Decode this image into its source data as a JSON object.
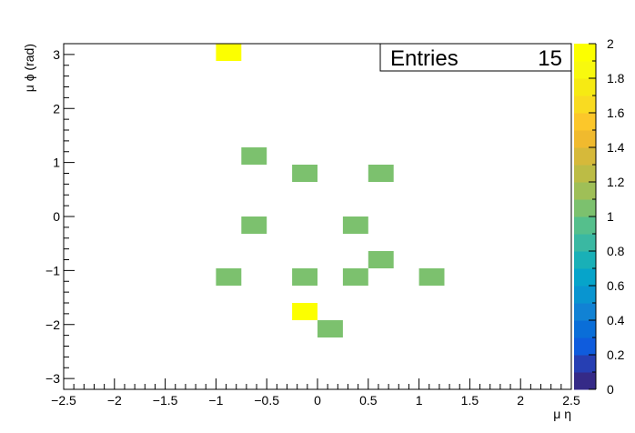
{
  "chart_data": {
    "type": "heatmap",
    "title": "",
    "xlabel": "μ η",
    "ylabel": "μ ϕ (rad)",
    "xlim": [
      -2.5,
      2.5
    ],
    "ylim": [
      -3.2,
      3.2
    ],
    "x_ticks": [
      "−2.5",
      "−2",
      "−1.5",
      "−1",
      "−0.5",
      "0",
      "0.5",
      "1",
      "1.5",
      "2",
      "2.5"
    ],
    "x_tick_values": [
      -2.5,
      -2,
      -1.5,
      -1,
      -0.5,
      0,
      0.5,
      1,
      1.5,
      2,
      2.5
    ],
    "y_ticks": [
      "−3",
      "−2",
      "−1",
      "0",
      "1",
      "2",
      "3"
    ],
    "y_tick_values": [
      -3,
      -2,
      -1,
      0,
      1,
      2,
      3
    ],
    "bin_width": [
      0.25,
      0.32
    ],
    "cells": [
      {
        "x": -0.875,
        "y": 3.04,
        "value": 2
      },
      {
        "x": -0.625,
        "y": 1.12,
        "value": 1
      },
      {
        "x": -0.125,
        "y": 0.8,
        "value": 1
      },
      {
        "x": 0.625,
        "y": 0.8,
        "value": 1
      },
      {
        "x": -0.625,
        "y": -0.16,
        "value": 1
      },
      {
        "x": 0.375,
        "y": -0.16,
        "value": 1
      },
      {
        "x": 0.625,
        "y": -0.8,
        "value": 1
      },
      {
        "x": -0.875,
        "y": -1.12,
        "value": 1
      },
      {
        "x": -0.125,
        "y": -1.12,
        "value": 1
      },
      {
        "x": 0.375,
        "y": -1.12,
        "value": 1
      },
      {
        "x": 1.125,
        "y": -1.12,
        "value": 1
      },
      {
        "x": -0.125,
        "y": -1.76,
        "value": 2
      },
      {
        "x": 0.125,
        "y": -2.08,
        "value": 1
      }
    ],
    "stats": {
      "label": "Entries",
      "value": "15"
    },
    "colorbar": {
      "min": 0,
      "max": 2,
      "tick_values": [
        0,
        0.2,
        0.4,
        0.6,
        0.8,
        1,
        1.2,
        1.4,
        1.6,
        1.8,
        2
      ],
      "tick_labels": [
        "0",
        "0.2",
        "0.4",
        "0.6",
        "0.8",
        "1",
        "1.2",
        "1.4",
        "1.6",
        "1.8",
        "2"
      ],
      "colors": [
        "#352a87",
        "#263fb3",
        "#0f5cdd",
        "#0a6ed8",
        "#1182d4",
        "#0995d0",
        "#06a4ca",
        "#19b0b7",
        "#3ab8a2",
        "#55bf8c",
        "#7cc16e",
        "#9fbf57",
        "#bcbc45",
        "#d6b93a",
        "#f0ba2e",
        "#fcc72a",
        "#f9db21",
        "#f6ea13",
        "#f8f90e",
        "#fcff00"
      ]
    }
  }
}
